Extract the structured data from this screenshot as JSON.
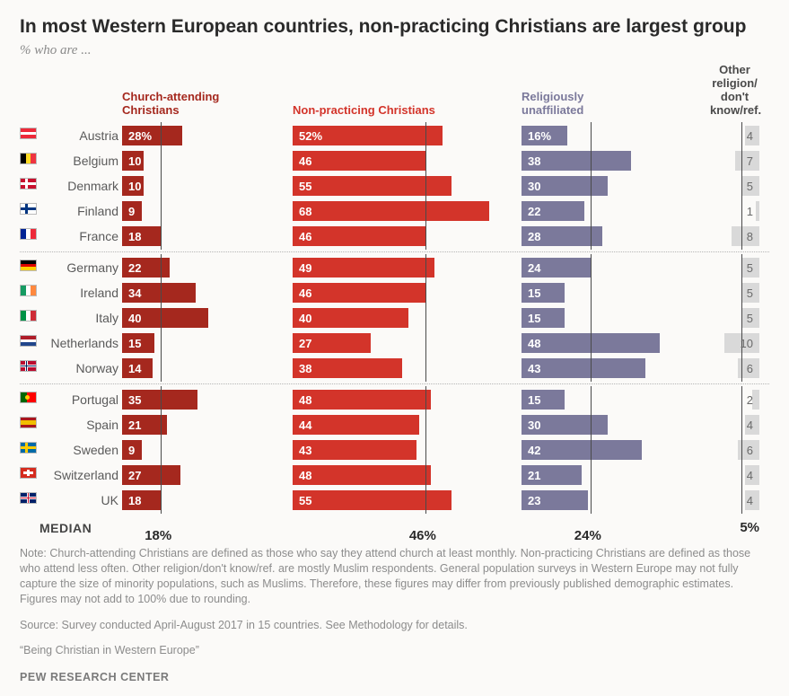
{
  "title": "In most Western European countries, non-practicing Christians are largest group",
  "subtitle": "% who are ...",
  "columns": {
    "a": {
      "label": "Church-attending\nChristians",
      "color": "#a5281e",
      "max": 50,
      "median_ref": 18,
      "median_label": "18%"
    },
    "b": {
      "label": "Non-practicing Christians",
      "color": "#d3342a",
      "max": 70,
      "median_ref": 46,
      "median_label": "46%"
    },
    "c": {
      "label": "Religiously\nunaffiliated",
      "color": "#7b799b",
      "max": 50,
      "median_ref": 24,
      "median_label": "24%"
    },
    "d": {
      "label": "Other\nreligion/\ndon't know/ref.",
      "color": "#d9d9d9",
      "max": 14,
      "median_ref": 5,
      "median_label": "5%"
    }
  },
  "median_word": "MEDIAN",
  "groups": [
    [
      {
        "country": "Austria",
        "flag": "at",
        "a": 28,
        "a_label": "28%",
        "b": 52,
        "b_label": "52%",
        "c": 16,
        "c_label": "16%",
        "d": 4
      },
      {
        "country": "Belgium",
        "flag": "be",
        "a": 10,
        "b": 46,
        "c": 38,
        "d": 7
      },
      {
        "country": "Denmark",
        "flag": "dk",
        "a": 10,
        "b": 55,
        "c": 30,
        "d": 5
      },
      {
        "country": "Finland",
        "flag": "fi",
        "a": 9,
        "b": 68,
        "c": 22,
        "d": 1
      },
      {
        "country": "France",
        "flag": "fr",
        "a": 18,
        "b": 46,
        "c": 28,
        "d": 8
      }
    ],
    [
      {
        "country": "Germany",
        "flag": "de",
        "a": 22,
        "b": 49,
        "c": 24,
        "d": 5
      },
      {
        "country": "Ireland",
        "flag": "ie",
        "a": 34,
        "b": 46,
        "c": 15,
        "d": 5
      },
      {
        "country": "Italy",
        "flag": "it",
        "a": 40,
        "b": 40,
        "c": 15,
        "d": 5
      },
      {
        "country": "Netherlands",
        "flag": "nl",
        "a": 15,
        "b": 27,
        "c": 48,
        "d": 10
      },
      {
        "country": "Norway",
        "flag": "no",
        "a": 14,
        "b": 38,
        "c": 43,
        "d": 6
      }
    ],
    [
      {
        "country": "Portugal",
        "flag": "pt",
        "a": 35,
        "b": 48,
        "c": 15,
        "d": 2
      },
      {
        "country": "Spain",
        "flag": "es",
        "a": 21,
        "b": 44,
        "c": 30,
        "d": 4
      },
      {
        "country": "Sweden",
        "flag": "se",
        "a": 9,
        "b": 43,
        "c": 42,
        "d": 6
      },
      {
        "country": "Switzerland",
        "flag": "ch",
        "a": 27,
        "b": 48,
        "c": 21,
        "d": 4
      },
      {
        "country": "UK",
        "flag": "gb",
        "a": 18,
        "b": 55,
        "c": 23,
        "d": 4
      }
    ]
  ],
  "note": "Note: Church-attending Christians are defined as those who say they attend church at least monthly. Non-practicing Christians are defined as those who attend less often. Other religion/don't know/ref. are mostly Muslim respondents. General population surveys in Western Europe may not fully capture the size of minority populations, such as Muslims. Therefore, these figures may differ from previously published demographic estimates. Figures may not add to 100% due to rounding.",
  "source": "Source: Survey conducted April-August 2017 in 15 countries. See Methodology for details.",
  "report": "“Being Christian in Western Europe”",
  "footer": "PEW RESEARCH CENTER",
  "header_text_colors": {
    "a": "#a5281e",
    "b": "#d3342a",
    "c": "#7b799b",
    "d": "#4a4a4a"
  }
}
